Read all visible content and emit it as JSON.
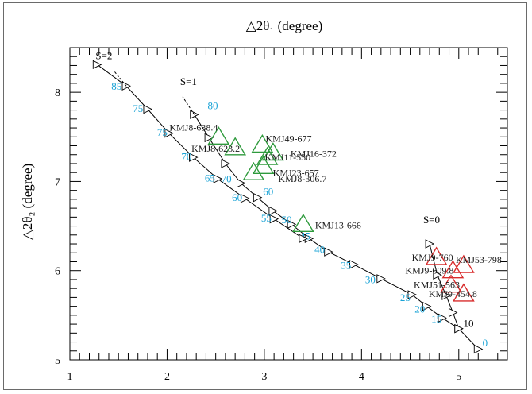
{
  "chart_data": {
    "type": "scatter",
    "title": "",
    "xlabel": "△2θ₁ (degree)",
    "ylabel": "△2θ₂ (degree)",
    "xlim": [
      1,
      5.5
    ],
    "ylim": [
      5,
      8.5
    ],
    "xticks": [
      "1",
      "2",
      "3",
      "4",
      "5"
    ],
    "yticks": [
      "5",
      "6",
      "7",
      "8"
    ],
    "grid": false,
    "curves": [
      {
        "label": "S=0",
        "points": [
          [
            4.7,
            6.3
          ],
          [
            4.78,
            5.95
          ],
          [
            4.87,
            5.72
          ],
          [
            4.94,
            5.53
          ],
          [
            5.0,
            5.35
          ],
          [
            5.2,
            5.12
          ]
        ],
        "tick_labels": [
          {
            "text": "10",
            "x": 5.1,
            "y": 5.37
          },
          {
            "text": "0",
            "x": 5.27,
            "y": 5.15
          }
        ]
      },
      {
        "label": "S=1",
        "points": [
          [
            2.28,
            7.75
          ],
          [
            2.43,
            7.49
          ],
          [
            2.6,
            7.2
          ],
          [
            2.76,
            6.98
          ],
          [
            2.93,
            6.82
          ],
          [
            3.09,
            6.67
          ],
          [
            3.28,
            6.52
          ],
          [
            3.46,
            6.36
          ],
          [
            3.66,
            6.21
          ],
          [
            3.92,
            6.07
          ],
          [
            4.2,
            5.91
          ],
          [
            4.52,
            5.73
          ],
          [
            4.67,
            5.6
          ],
          [
            4.83,
            5.47
          ],
          [
            5.0,
            5.35
          ]
        ],
        "tick_labels": [
          {
            "text": "80",
            "x": 2.47,
            "y": 7.81
          },
          {
            "text": "70",
            "x": 2.61,
            "y": 6.99
          },
          {
            "text": "60",
            "x": 3.04,
            "y": 6.85
          },
          {
            "text": "50",
            "x": 3.23,
            "y": 6.53
          },
          {
            "text": "45",
            "x": 3.42,
            "y": 6.35
          },
          {
            "text": "40",
            "x": 3.57,
            "y": 6.2
          },
          {
            "text": "35",
            "x": 3.84,
            "y": 6.02
          },
          {
            "text": "30",
            "x": 4.09,
            "y": 5.86
          },
          {
            "text": "25",
            "x": 4.45,
            "y": 5.66
          },
          {
            "text": "20",
            "x": 4.6,
            "y": 5.53
          },
          {
            "text": "15",
            "x": 4.77,
            "y": 5.42
          }
        ]
      },
      {
        "label": "S=2",
        "points": [
          [
            1.28,
            8.31
          ],
          [
            1.58,
            8.07
          ],
          [
            1.8,
            7.81
          ],
          [
            2.02,
            7.54
          ],
          [
            2.27,
            7.27
          ],
          [
            2.52,
            7.03
          ],
          [
            2.8,
            6.81
          ],
          [
            3.1,
            6.58
          ],
          [
            3.4,
            6.36
          ]
        ],
        "tick_labels": [
          {
            "text": "85",
            "x": 1.48,
            "y": 8.03
          },
          {
            "text": "75",
            "x": 1.7,
            "y": 7.78
          },
          {
            "text": "75",
            "x": 1.95,
            "y": 7.51
          },
          {
            "text": "70",
            "x": 2.2,
            "y": 7.24
          },
          {
            "text": "65",
            "x": 2.44,
            "y": 7.0
          },
          {
            "text": "60",
            "x": 2.72,
            "y": 6.78
          },
          {
            "text": "55",
            "x": 3.02,
            "y": 6.55
          }
        ]
      }
    ],
    "samples": [
      {
        "name": "KMJ8-638.4",
        "x": 2.53,
        "y": 7.5,
        "color": "#2e9a3c"
      },
      {
        "name": "KMJ8-623.2",
        "x": 2.7,
        "y": 7.38,
        "color": "#2e9a3c"
      },
      {
        "name": "KMJ49-677",
        "x": 2.98,
        "y": 7.41,
        "color": "#2e9a3c"
      },
      {
        "name": "KMJ16-372",
        "x": 3.09,
        "y": 7.32,
        "color": "#2e9a3c"
      },
      {
        "name": "KMJ11-550",
        "x": 3.03,
        "y": 7.27,
        "color": "#2e9a3c"
      },
      {
        "name": "KMJ23-657",
        "x": 2.99,
        "y": 7.17,
        "color": "#2e9a3c"
      },
      {
        "name": "KMJ8-306.7",
        "x": 2.89,
        "y": 7.1,
        "color": "#2e9a3c"
      },
      {
        "name": "KMJ13-666",
        "x": 3.4,
        "y": 6.52,
        "color": "#2e9a3c"
      },
      {
        "name": "KMJ9-760",
        "x": 4.77,
        "y": 6.15,
        "color": "#d82c2c"
      },
      {
        "name": "KMJ53-798",
        "x": 5.05,
        "y": 6.06,
        "color": "#d82c2c"
      },
      {
        "name": "KMJ9-609.8",
        "x": 4.94,
        "y": 6.0,
        "color": "#d82c2c"
      },
      {
        "name": "KMJ51-563",
        "x": 4.92,
        "y": 5.84,
        "color": "#d82c2c"
      },
      {
        "name": "KMJ9-454.8",
        "x": 5.05,
        "y": 5.74,
        "color": "#d82c2c"
      }
    ]
  }
}
